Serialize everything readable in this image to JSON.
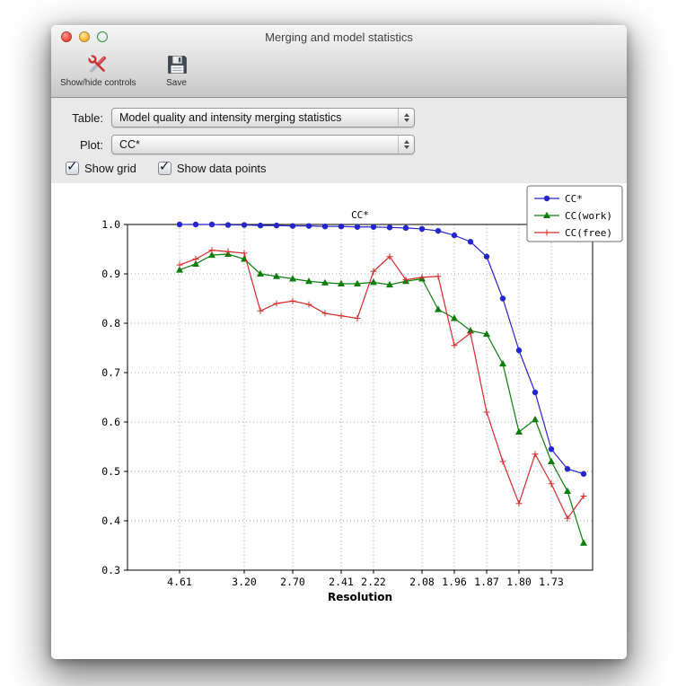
{
  "window": {
    "title": "Merging and model statistics"
  },
  "toolbar": {
    "items": [
      {
        "label": "Show/hide controls",
        "icon": "tools-icon"
      },
      {
        "label": "Save",
        "icon": "save-icon"
      }
    ]
  },
  "controls": {
    "table_label": "Table:",
    "table_value": "Model quality and intensity merging statistics",
    "plot_label": "Plot:",
    "plot_value": "CC*",
    "checkboxes": [
      {
        "label": "Show grid",
        "checked": true
      },
      {
        "label": "Show data points",
        "checked": true
      }
    ]
  },
  "chart_data": {
    "type": "line",
    "title": "CC*",
    "xlabel": "Resolution",
    "ylabel": "",
    "ylim": [
      0.3,
      1.0
    ],
    "yticks": [
      0.3,
      0.4,
      0.5,
      0.6,
      0.7,
      0.8,
      0.9,
      1.0
    ],
    "x_tick_labels": [
      "4.61",
      "3.20",
      "2.70",
      "2.41",
      "2.22",
      "2.08",
      "1.96",
      "1.87",
      "1.80",
      "1.73"
    ],
    "x_tick_point_indices": [
      0,
      4,
      7,
      10,
      12,
      15,
      17,
      19,
      21,
      23
    ],
    "grid": true,
    "show_data_points": true,
    "legend_position": "upper right",
    "series": [
      {
        "name": "CC*",
        "color": "#2525cc",
        "marker": "circle",
        "values": [
          1.0,
          1.0,
          1.0,
          0.999,
          0.999,
          0.998,
          0.998,
          0.997,
          0.997,
          0.996,
          0.996,
          0.995,
          0.995,
          0.994,
          0.993,
          0.991,
          0.987,
          0.978,
          0.965,
          0.935,
          0.85,
          0.745,
          0.66,
          0.545,
          0.505,
          0.495
        ]
      },
      {
        "name": "CC(work)",
        "color": "#0a7d0a",
        "marker": "triangle",
        "values": [
          0.908,
          0.92,
          0.938,
          0.94,
          0.93,
          0.9,
          0.895,
          0.89,
          0.885,
          0.882,
          0.88,
          0.88,
          0.883,
          0.878,
          0.885,
          0.89,
          0.828,
          0.81,
          0.785,
          0.778,
          0.718,
          0.58,
          0.605,
          0.52,
          0.46,
          0.355
        ]
      },
      {
        "name": "CC(free)",
        "color": "#d42a2a",
        "marker": "plus",
        "values": [
          0.918,
          0.93,
          0.948,
          0.945,
          0.942,
          0.825,
          0.84,
          0.845,
          0.838,
          0.82,
          0.815,
          0.81,
          0.905,
          0.935,
          0.888,
          0.893,
          0.895,
          0.755,
          0.78,
          0.62,
          0.52,
          0.435,
          0.535,
          0.475,
          0.405,
          0.45
        ]
      }
    ]
  }
}
